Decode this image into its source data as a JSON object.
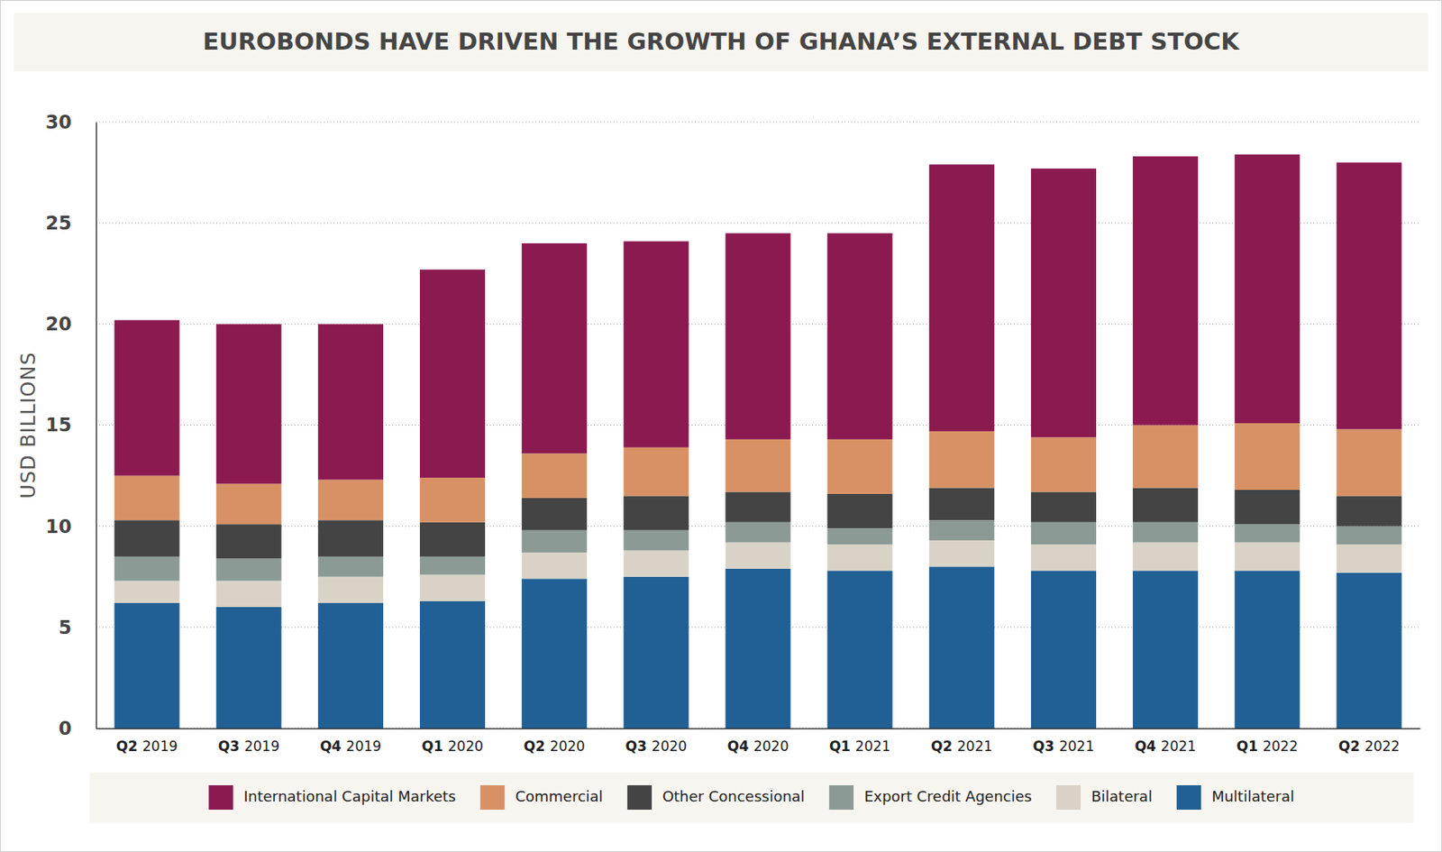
{
  "chart_data": {
    "type": "bar",
    "stacked": true,
    "grid": true,
    "legend": "bottom",
    "title": "EUROBONDS HAVE DRIVEN THE GROWTH OF GHANA’S EXTERNAL DEBT STOCK",
    "y_label": "USD BILLIONS",
    "categories": [
      "Q2 2019",
      "Q3 2019",
      "Q4 2019",
      "Q1 2020",
      "Q2 2020",
      "Q3 2020",
      "Q4 2020",
      "Q1 2021",
      "Q2 2021",
      "Q3 2021",
      "Q4 2021",
      "Q1 2022",
      "Q2 2022"
    ],
    "ylim": [
      0,
      30
    ],
    "yticks": [
      0,
      5,
      10,
      15,
      20,
      25,
      30
    ],
    "series": [
      {
        "name": "International Capital Markets",
        "color": "#8b1a50",
        "values": [
          7.7,
          7.9,
          7.7,
          10.3,
          10.4,
          10.2,
          10.2,
          10.2,
          13.2,
          13.3,
          13.3,
          13.3,
          13.2
        ]
      },
      {
        "name": "Commercial",
        "color": "#d89165",
        "values": [
          2.2,
          2.0,
          2.0,
          2.2,
          2.2,
          2.4,
          2.6,
          2.7,
          2.8,
          2.7,
          3.1,
          3.3,
          3.3
        ]
      },
      {
        "name": "Other Concessional",
        "color": "#444444",
        "values": [
          1.8,
          1.7,
          1.8,
          1.7,
          1.6,
          1.7,
          1.5,
          1.7,
          1.6,
          1.5,
          1.7,
          1.7,
          1.5
        ]
      },
      {
        "name": "Export Credit Agencies",
        "color": "#8c9a96",
        "values": [
          1.2,
          1.1,
          1.0,
          0.9,
          1.1,
          1.0,
          1.0,
          0.8,
          1.0,
          1.1,
          1.0,
          0.9,
          0.9
        ]
      },
      {
        "name": "Bilateral",
        "color": "#d9d3c7",
        "values": [
          1.1,
          1.3,
          1.3,
          1.3,
          1.3,
          1.3,
          1.3,
          1.3,
          1.3,
          1.3,
          1.4,
          1.4,
          1.4
        ]
      },
      {
        "name": "Multilateral",
        "color": "#216094",
        "values": [
          6.2,
          6.0,
          6.2,
          6.3,
          7.4,
          7.5,
          7.9,
          7.8,
          8.0,
          7.8,
          7.8,
          7.8,
          7.7
        ]
      }
    ]
  }
}
